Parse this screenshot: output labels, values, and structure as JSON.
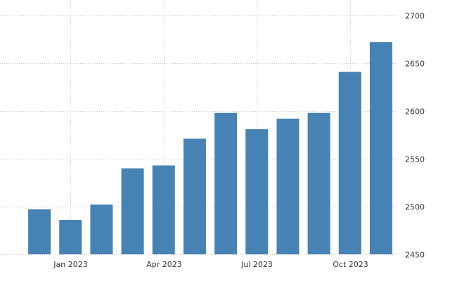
{
  "chart_data": {
    "type": "bar",
    "title": "",
    "xlabel": "",
    "ylabel": "",
    "categories": [
      "Dec 2022",
      "Jan 2023",
      "Feb 2023",
      "Mar 2023",
      "Apr 2023",
      "May 2023",
      "Jun 2023",
      "Jul 2023",
      "Aug 2023",
      "Sep 2023",
      "Oct 2023",
      "Nov 2023"
    ],
    "values": [
      2497,
      2486,
      2502,
      2540,
      2543,
      2571,
      2598,
      2581,
      2592,
      2598,
      2641,
      2672
    ],
    "ylim": [
      2450,
      2700
    ],
    "y_ticks": [
      "2450",
      "2500",
      "2550",
      "2600",
      "2650",
      "2700"
    ],
    "y_tick_values": [
      2450,
      2500,
      2550,
      2600,
      2650,
      2700
    ],
    "x_tick_labels": [
      "Jan 2023",
      "Apr 2023",
      "Jul 2023",
      "Oct 2023"
    ],
    "x_tick_index": [
      1,
      4,
      7,
      10
    ],
    "y_axis_side": "right",
    "grid": true,
    "legend": "none",
    "colors": {
      "bar": "#4682b4",
      "grid": "#c8c8c8",
      "text": "#333333"
    }
  }
}
